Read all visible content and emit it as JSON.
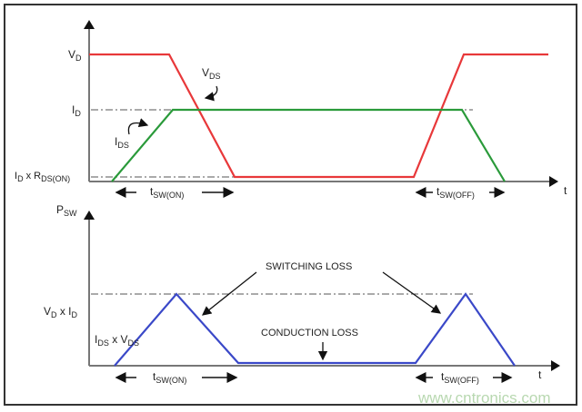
{
  "top": {
    "label_vd": "V",
    "label_vd_sub": "D",
    "label_id": "I",
    "label_id_sub": "D",
    "label_idr_a": "I",
    "label_idr_a_sub": "D",
    "label_idr_b": " x R",
    "label_idr_b_sub": "DS(ON)",
    "label_vds": "V",
    "label_vds_sub": "DS",
    "label_ids": "I",
    "label_ids_sub": "DS",
    "t_on": "t",
    "t_on_sub": "SW(ON)",
    "t_off": "t",
    "t_off_sub": "SW(OFF)",
    "t_axis": "t"
  },
  "bottom": {
    "label_psw": "P",
    "label_psw_sub": "SW",
    "label_vdid_a": "V",
    "label_vdid_a_sub": "D",
    "label_vdid_b": " x I",
    "label_vdid_b_sub": "D",
    "label_idsvds_a": "I",
    "label_idsvds_a_sub": "DS",
    "label_idsvds_b": " x V",
    "label_idsvds_b_sub": "DS",
    "switching_loss": "SWITCHING LOSS",
    "conduction_loss": "CONDUCTION LOSS",
    "t_on": "t",
    "t_on_sub": "SW(ON)",
    "t_off": "t",
    "t_off_sub": "SW(OFF)",
    "t_axis": "t"
  },
  "watermark": "www.cntronics.com",
  "colors": {
    "vds": "#e8383a",
    "ids": "#2a9a3a",
    "psw": "#3a48c8",
    "watermark": "#b8d8b0"
  }
}
